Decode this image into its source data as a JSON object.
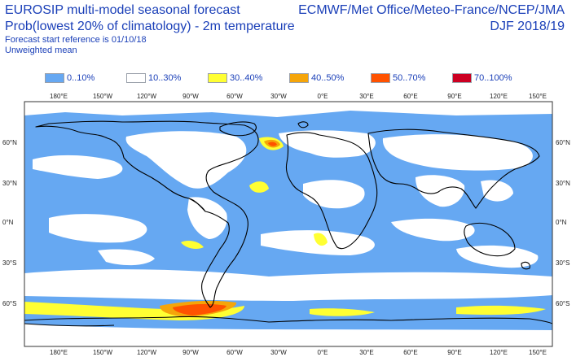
{
  "header": {
    "title_line1": "EUROSIP multi-model seasonal forecast",
    "title_line2": "Prob(lowest 20% of climatology) - 2m temperature",
    "forecast_ref": "Forecast start reference is 01/10/18",
    "weighting": "Unweighted mean",
    "centres": "ECMWF/Met Office/Meteo-France/NCEP/JMA",
    "season": "DJF 2018/19"
  },
  "legend": [
    {
      "label": "0..10%",
      "color": "#66a8f2"
    },
    {
      "label": "10..30%",
      "color": "#ffffff"
    },
    {
      "label": "30..40%",
      "color": "#ffff33"
    },
    {
      "label": "40..50%",
      "color": "#f5a50a"
    },
    {
      "label": "50..70%",
      "color": "#ff5200"
    },
    {
      "label": "70..100%",
      "color": "#cc0022"
    }
  ],
  "map": {
    "lon_labels": [
      "180°E",
      "150°W",
      "120°W",
      "90°W",
      "60°W",
      "30°W",
      "0°E",
      "30°E",
      "60°E",
      "90°E",
      "120°E",
      "150°E"
    ],
    "lat_labels": [
      "60°N",
      "30°N",
      "0°N",
      "30°S",
      "60°S"
    ],
    "ocean_color": "#66a8f2",
    "coast_color": "#000000"
  }
}
